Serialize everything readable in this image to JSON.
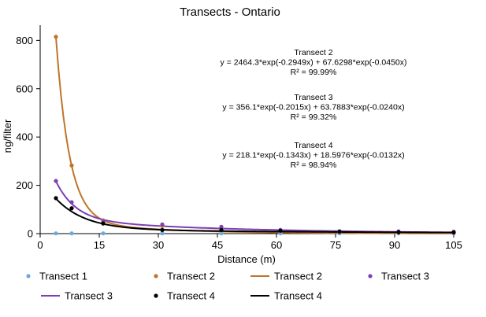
{
  "chart_data": {
    "type": "scatter",
    "title": "Transects - Ontario",
    "xlabel": "Distance (m)",
    "ylabel": "ng/filter",
    "xlim": [
      0,
      105
    ],
    "ylim": [
      0,
      850
    ],
    "xticks": [
      0,
      15,
      30,
      45,
      60,
      75,
      90,
      105
    ],
    "yticks": [
      0,
      200,
      400,
      600,
      800
    ],
    "grid": false,
    "legend_position": "bottom",
    "series": [
      {
        "name": "Transect 1",
        "kind": "points",
        "color": "#6fa8dc",
        "x": [
          4,
          8,
          16,
          31,
          46,
          61,
          76,
          91,
          105
        ],
        "y": [
          1,
          1,
          1,
          1,
          1,
          1,
          1,
          1,
          1
        ]
      },
      {
        "name": "Transect 2",
        "kind": "points",
        "color": "#c0742a",
        "x": [
          4,
          8,
          16,
          31,
          46,
          61,
          76,
          91,
          105
        ],
        "y": [
          815,
          282,
          55,
          32,
          22,
          12,
          8,
          5,
          4
        ]
      },
      {
        "name": "Transect 2",
        "kind": "fit",
        "color": "#c0742a",
        "equation": "y = 2464.3*exp(-0.2949x) + 67.6298*exp(-0.0450x)",
        "r2": "R² = 99.99%",
        "fit": {
          "a": 2464.3,
          "b": -0.2949,
          "c": 67.6298,
          "d": -0.045,
          "x_start": 4,
          "x_end": 105
        }
      },
      {
        "name": "Transect 3",
        "kind": "points",
        "color": "#7b3fb5",
        "x": [
          4,
          8,
          16,
          31,
          46,
          61,
          76,
          91,
          105
        ],
        "y": [
          218,
          130,
          50,
          38,
          28,
          15,
          10,
          9,
          8
        ]
      },
      {
        "name": "Transect 3",
        "kind": "fit",
        "color": "#7b3fb5",
        "equation": "y = 356.1*exp(-0.2015x) + 63.7883*exp(-0.0240x)",
        "r2": "R² = 99.32%",
        "fit": {
          "a": 356.1,
          "b": -0.2015,
          "c": 63.7883,
          "d": -0.024,
          "x_start": 4,
          "x_end": 105
        }
      },
      {
        "name": "Transect 4",
        "kind": "points",
        "color": "#000000",
        "x": [
          4,
          8,
          16,
          31,
          46,
          61,
          76,
          91,
          105
        ],
        "y": [
          147,
          105,
          42,
          15,
          15,
          12,
          8,
          6,
          5
        ]
      },
      {
        "name": "Transect 4",
        "kind": "fit",
        "color": "#000000",
        "equation": "y = 218.1*exp(-0.1343x) + 18.5976*exp(-0.0132x)",
        "r2": "R² = 98.94%",
        "fit": {
          "a": 218.1,
          "b": -0.1343,
          "c": 18.5976,
          "d": -0.0132,
          "x_start": 4,
          "x_end": 105
        }
      }
    ],
    "annotations": [
      {
        "series": 2,
        "lines": [
          "Transect 2",
          "y = 2464.3*exp(-0.2949x) + 67.6298*exp(-0.0450x)",
          "R² = 99.99%"
        ]
      },
      {
        "series": 4,
        "lines": [
          "Transect 3",
          "y = 356.1*exp(-0.2015x) + 63.7883*exp(-0.0240x)",
          "R² = 99.32%"
        ]
      },
      {
        "series": 6,
        "lines": [
          "Transect 4",
          "y = 218.1*exp(-0.1343x) + 18.5976*exp(-0.0132x)",
          "R² = 98.94%"
        ]
      }
    ]
  }
}
